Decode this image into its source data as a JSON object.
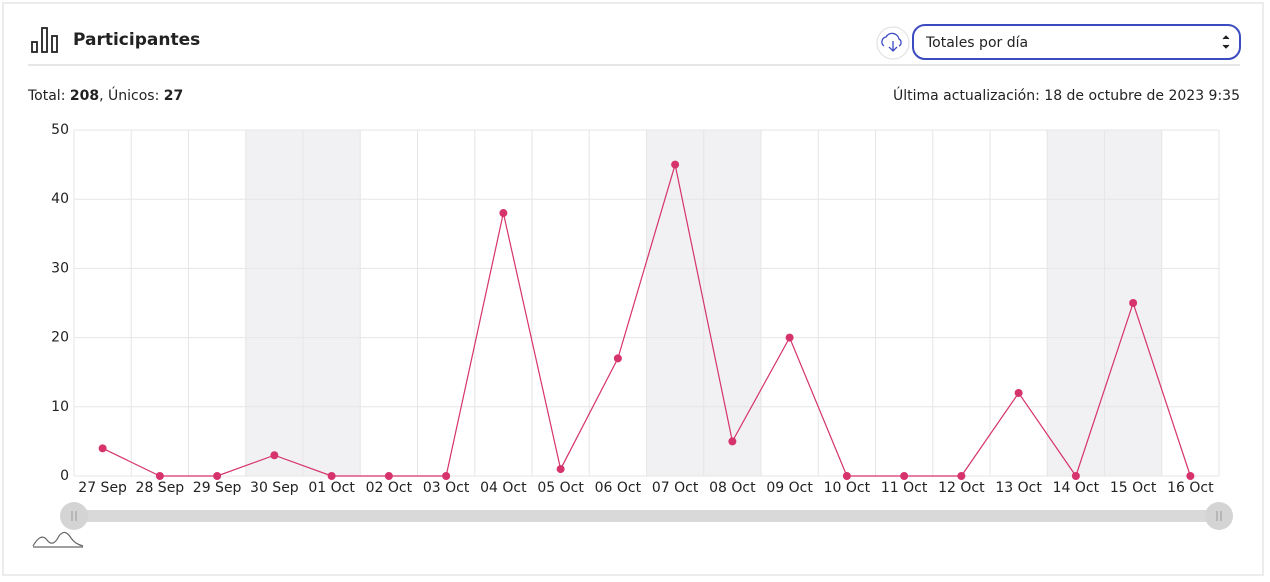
{
  "header": {
    "title": "Participantes",
    "select": "Totales por día"
  },
  "summary": {
    "total_label": "Total:",
    "total": 208,
    "separator": ",",
    "unique_label": "Únicos:",
    "unique": 27
  },
  "updated": "Última actualización: 18 de octubre de 2023 9:35",
  "chart_data": {
    "type": "line",
    "categories": [
      "27 Sep",
      "28 Sep",
      "29 Sep",
      "30 Sep",
      "01 Oct",
      "02 Oct",
      "03 Oct",
      "04 Oct",
      "05 Oct",
      "06 Oct",
      "07 Oct",
      "08 Oct",
      "09 Oct",
      "10 Oct",
      "11 Oct",
      "12 Oct",
      "13 Oct",
      "14 Oct",
      "15 Oct",
      "16 Oct"
    ],
    "values": [
      4,
      0,
      0,
      3,
      0,
      0,
      0,
      38,
      1,
      17,
      45,
      5,
      20,
      0,
      0,
      0,
      12,
      0,
      25,
      0
    ],
    "color": "#d6336c",
    "ylim": [
      0,
      50
    ],
    "yticks": [
      0,
      10,
      20,
      30,
      40,
      50
    ],
    "grid": true,
    "shaded_categories": [
      3,
      4,
      10,
      11,
      17,
      18
    ]
  }
}
